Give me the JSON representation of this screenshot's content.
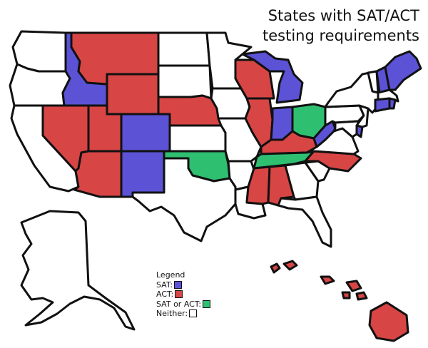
{
  "title_line1": "States with SAT/ACT",
  "title_line2": "testing requirements",
  "legend": {
    "heading": "Legend",
    "items": [
      {
        "label": "SAT:",
        "color": "#5b52d6"
      },
      {
        "label": "ACT:",
        "color": "#d84545"
      },
      {
        "label": "SAT or ACT:",
        "color": "#2fbf71"
      },
      {
        "label": "Neither:",
        "color": "#ffffff"
      }
    ]
  },
  "colors": {
    "sat": "#5b52d6",
    "act": "#d84545",
    "either": "#2fbf71",
    "neither": "#ffffff",
    "border": "#111111"
  },
  "states": {
    "sat": [
      "Idaho",
      "Colorado",
      "New Mexico",
      "Michigan",
      "Indiana",
      "West Virginia",
      "Delaware",
      "Maine",
      "New Hampshire",
      "Connecticut",
      "Rhode Island"
    ],
    "act": [
      "Montana",
      "Wyoming",
      "Nebraska",
      "Nevada",
      "Utah",
      "Arizona",
      "Wisconsin",
      "Illinois",
      "Kentucky",
      "Mississippi",
      "Alabama",
      "North Carolina",
      "Hawaii"
    ],
    "either": [
      "Oklahoma",
      "Tennessee",
      "Ohio"
    ],
    "neither": [
      "Washington",
      "Oregon",
      "California",
      "North Dakota",
      "South Dakota",
      "Kansas",
      "Texas",
      "Minnesota",
      "Iowa",
      "Missouri",
      "Arkansas",
      "Louisiana",
      "Georgia",
      "Florida",
      "South Carolina",
      "Virginia",
      "Pennsylvania",
      "New York",
      "New Jersey",
      "Maryland",
      "Vermont",
      "Massachusetts",
      "Alaska"
    ]
  }
}
